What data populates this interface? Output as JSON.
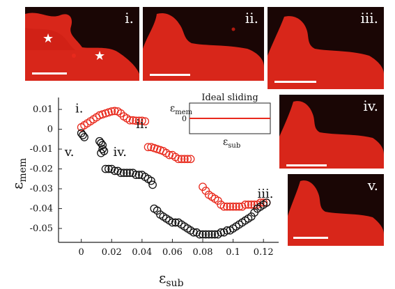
{
  "panels": [
    {
      "id": "i",
      "label": "i."
    },
    {
      "id": "ii",
      "label": "ii."
    },
    {
      "id": "iii",
      "label": "iii."
    },
    {
      "id": "iv",
      "label": "iv."
    },
    {
      "id": "v",
      "label": "v."
    }
  ],
  "colors": {
    "fluorescence": "#e8291c",
    "background": "#1a0605",
    "series_red": "#e8291c",
    "series_black": "#111111",
    "scale_bar": "#ffffff",
    "star": "#ffffff"
  },
  "chart_data": {
    "type": "scatter",
    "xlabel": "ε",
    "xlabel_sub": "sub",
    "ylabel": "ε",
    "ylabel_sub": "mem",
    "xlim": [
      -0.015,
      0.13
    ],
    "ylim": [
      -0.057,
      0.016
    ],
    "x_ticks": [
      0,
      0.02,
      0.04,
      0.06,
      0.08,
      0.1,
      0.12
    ],
    "x_tick_labels": [
      "0",
      "0.02",
      "0.04",
      "0.06",
      "0.08",
      "0.1",
      "0.12"
    ],
    "y_ticks": [
      0.01,
      0,
      -0.01,
      -0.02,
      -0.03,
      -0.04,
      -0.05
    ],
    "y_tick_labels": [
      "0.01",
      "0",
      "-0.01",
      "-0.02",
      "-0.03",
      "-0.04",
      "-0.05"
    ],
    "marker": "open-circle",
    "annotations": [
      {
        "text": "i.",
        "x": -0.004,
        "y": 0.0085
      },
      {
        "text": "ii.",
        "x": 0.036,
        "y": 0.0005
      },
      {
        "text": "iii.",
        "x": 0.116,
        "y": -0.0345
      },
      {
        "text": "iv.",
        "x": 0.021,
        "y": -0.0135
      },
      {
        "text": "v.",
        "x": -0.011,
        "y": -0.0135
      }
    ],
    "series": [
      {
        "color": "#e8291c",
        "points": [
          [
            0.0,
            0.001
          ],
          [
            0.002,
            0.002
          ],
          [
            0.004,
            0.003
          ],
          [
            0.006,
            0.004
          ],
          [
            0.008,
            0.005
          ],
          [
            0.01,
            0.006
          ],
          [
            0.012,
            0.007
          ],
          [
            0.014,
            0.0075
          ],
          [
            0.016,
            0.008
          ],
          [
            0.018,
            0.0085
          ],
          [
            0.02,
            0.009
          ],
          [
            0.022,
            0.0092
          ],
          [
            0.024,
            0.009
          ],
          [
            0.026,
            0.008
          ],
          [
            0.028,
            0.0065
          ],
          [
            0.03,
            0.0055
          ],
          [
            0.032,
            0.0045
          ],
          [
            0.034,
            0.0045
          ],
          [
            0.036,
            0.0043
          ],
          [
            0.038,
            0.0043
          ],
          [
            0.04,
            0.0043
          ],
          [
            0.042,
            0.004
          ],
          [
            0.044,
            -0.009
          ],
          [
            0.046,
            -0.009
          ],
          [
            0.048,
            -0.0095
          ],
          [
            0.05,
            -0.01
          ],
          [
            0.052,
            -0.0105
          ],
          [
            0.054,
            -0.011
          ],
          [
            0.056,
            -0.012
          ],
          [
            0.058,
            -0.013
          ],
          [
            0.06,
            -0.013
          ],
          [
            0.062,
            -0.014
          ],
          [
            0.064,
            -0.015
          ],
          [
            0.066,
            -0.015
          ],
          [
            0.068,
            -0.015
          ],
          [
            0.07,
            -0.015
          ],
          [
            0.072,
            -0.015
          ],
          [
            0.08,
            -0.029
          ],
          [
            0.082,
            -0.031
          ],
          [
            0.084,
            -0.033
          ],
          [
            0.086,
            -0.034
          ],
          [
            0.088,
            -0.035
          ],
          [
            0.09,
            -0.036
          ],
          [
            0.092,
            -0.038
          ],
          [
            0.094,
            -0.039
          ],
          [
            0.096,
            -0.039
          ],
          [
            0.098,
            -0.039
          ],
          [
            0.1,
            -0.039
          ],
          [
            0.102,
            -0.039
          ],
          [
            0.104,
            -0.039
          ],
          [
            0.106,
            -0.039
          ],
          [
            0.108,
            -0.038
          ],
          [
            0.11,
            -0.038
          ],
          [
            0.112,
            -0.038
          ],
          [
            0.114,
            -0.038
          ],
          [
            0.116,
            -0.038
          ],
          [
            0.118,
            -0.037
          ],
          [
            0.12,
            -0.037
          ],
          [
            0.122,
            -0.037
          ]
        ]
      },
      {
        "color": "#111111",
        "points": [
          [
            0.0,
            -0.002
          ],
          [
            0.001,
            -0.003
          ],
          [
            0.002,
            -0.004
          ],
          [
            0.012,
            -0.006
          ],
          [
            0.013,
            -0.007
          ],
          [
            0.014,
            -0.008
          ],
          [
            0.014,
            -0.01
          ],
          [
            0.015,
            -0.011
          ],
          [
            0.013,
            -0.012
          ],
          [
            0.016,
            -0.02
          ],
          [
            0.018,
            -0.02
          ],
          [
            0.02,
            -0.02
          ],
          [
            0.022,
            -0.021
          ],
          [
            0.024,
            -0.021
          ],
          [
            0.026,
            -0.022
          ],
          [
            0.028,
            -0.022
          ],
          [
            0.03,
            -0.022
          ],
          [
            0.032,
            -0.022
          ],
          [
            0.034,
            -0.022
          ],
          [
            0.036,
            -0.023
          ],
          [
            0.038,
            -0.023
          ],
          [
            0.04,
            -0.023
          ],
          [
            0.042,
            -0.024
          ],
          [
            0.044,
            -0.025
          ],
          [
            0.046,
            -0.026
          ],
          [
            0.047,
            -0.028
          ],
          [
            0.048,
            -0.04
          ],
          [
            0.05,
            -0.041
          ],
          [
            0.052,
            -0.043
          ],
          [
            0.054,
            -0.044
          ],
          [
            0.056,
            -0.045
          ],
          [
            0.058,
            -0.046
          ],
          [
            0.06,
            -0.047
          ],
          [
            0.062,
            -0.047
          ],
          [
            0.064,
            -0.047
          ],
          [
            0.066,
            -0.048
          ],
          [
            0.068,
            -0.049
          ],
          [
            0.07,
            -0.05
          ],
          [
            0.072,
            -0.051
          ],
          [
            0.074,
            -0.052
          ],
          [
            0.076,
            -0.052
          ],
          [
            0.078,
            -0.053
          ],
          [
            0.08,
            -0.053
          ],
          [
            0.082,
            -0.053
          ],
          [
            0.084,
            -0.053
          ],
          [
            0.086,
            -0.053
          ],
          [
            0.088,
            -0.053
          ],
          [
            0.09,
            -0.053
          ],
          [
            0.092,
            -0.052
          ],
          [
            0.094,
            -0.052
          ],
          [
            0.096,
            -0.051
          ],
          [
            0.098,
            -0.051
          ],
          [
            0.1,
            -0.05
          ],
          [
            0.102,
            -0.049
          ],
          [
            0.104,
            -0.048
          ],
          [
            0.106,
            -0.047
          ],
          [
            0.108,
            -0.046
          ],
          [
            0.11,
            -0.045
          ],
          [
            0.112,
            -0.044
          ],
          [
            0.114,
            -0.042
          ],
          [
            0.116,
            -0.04
          ],
          [
            0.118,
            -0.039
          ],
          [
            0.12,
            -0.038
          ],
          [
            0.122,
            -0.037
          ]
        ]
      }
    ],
    "inset": {
      "title": "Ideal sliding",
      "ylabel": "ε",
      "ylabel_sub": "mem",
      "xlabel": "ε",
      "xlabel_sub": "sub",
      "ytick": "0",
      "line_color": "#e8291c",
      "line_y": 0
    }
  }
}
